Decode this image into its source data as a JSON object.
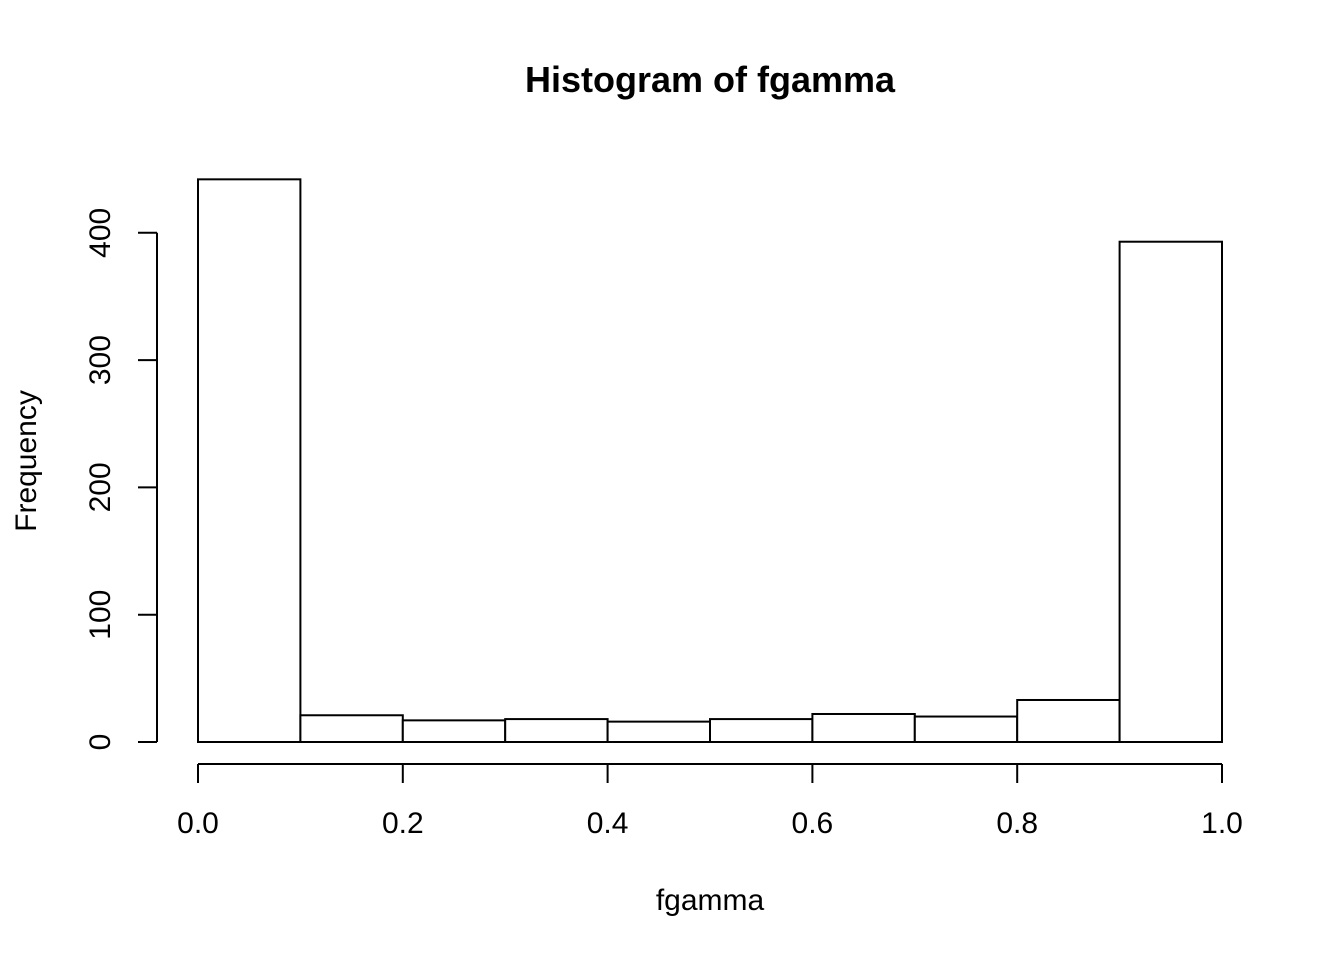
{
  "chart_data": {
    "type": "bar",
    "title": "Histogram of fgamma",
    "xlabel": "fgamma",
    "ylabel": "Frequency",
    "bin_edges": [
      0.0,
      0.1,
      0.2,
      0.3,
      0.4,
      0.5,
      0.6,
      0.7,
      0.8,
      0.9,
      1.0
    ],
    "values": [
      442,
      21,
      17,
      18,
      16,
      18,
      22,
      20,
      33,
      393
    ],
    "xlim": [
      0.0,
      1.0
    ],
    "ylim": [
      0,
      442
    ],
    "x_ticks": [
      "0.0",
      "0.2",
      "0.4",
      "0.6",
      "0.8",
      "1.0"
    ],
    "y_ticks": [
      "0",
      "100",
      "200",
      "300",
      "400"
    ],
    "grid": false,
    "bar_fill": "#ffffff",
    "bar_stroke": "#000000"
  }
}
